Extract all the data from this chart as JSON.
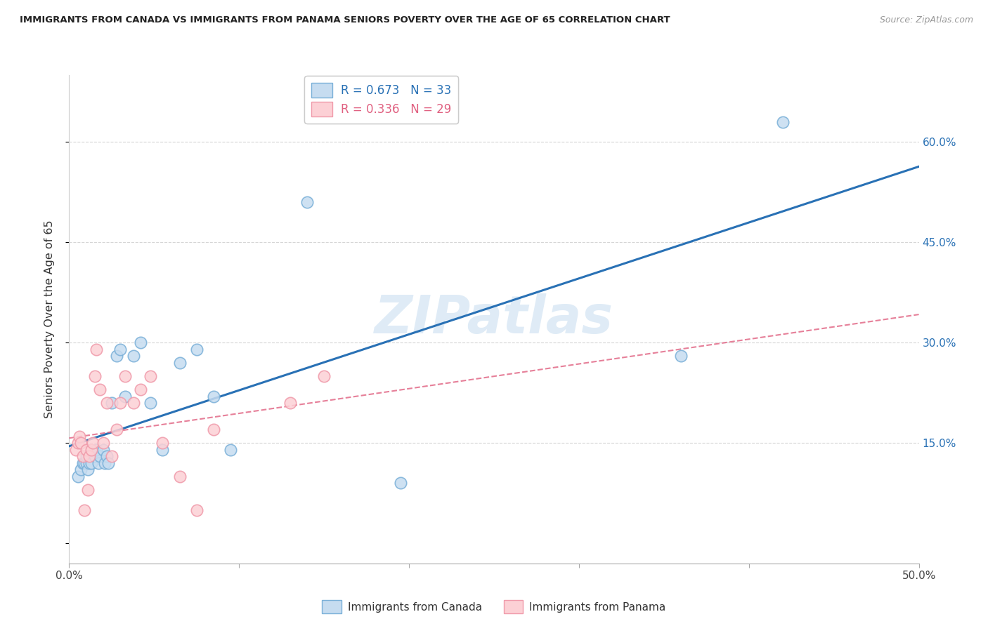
{
  "title": "IMMIGRANTS FROM CANADA VS IMMIGRANTS FROM PANAMA SENIORS POVERTY OVER THE AGE OF 65 CORRELATION CHART",
  "source": "Source: ZipAtlas.com",
  "ylabel": "Seniors Poverty Over the Age of 65",
  "watermark": "ZIPatlas",
  "xlim": [
    0.0,
    0.5
  ],
  "ylim": [
    -0.03,
    0.7
  ],
  "yticks": [
    0.0,
    0.15,
    0.3,
    0.45,
    0.6
  ],
  "ytick_labels": [
    "",
    "15.0%",
    "30.0%",
    "45.0%",
    "60.0%"
  ],
  "xticks": [
    0.0,
    0.1,
    0.2,
    0.3,
    0.4,
    0.5
  ],
  "xtick_labels": [
    "0.0%",
    "",
    "",
    "",
    "",
    "50.0%"
  ],
  "canada_R": 0.673,
  "canada_N": 33,
  "panama_R": 0.336,
  "panama_N": 29,
  "canada_scatter_face": "#c6dcf0",
  "canada_scatter_edge": "#7ab0d8",
  "panama_scatter_face": "#fcd0d5",
  "panama_scatter_edge": "#f09aaa",
  "canada_line_color": "#2971b5",
  "panama_line_color": "#e06080",
  "panama_dash_color": "#e06080",
  "background_color": "#ffffff",
  "grid_color": "#cccccc",
  "canada_x": [
    0.005,
    0.007,
    0.008,
    0.009,
    0.01,
    0.01,
    0.011,
    0.012,
    0.013,
    0.015,
    0.016,
    0.017,
    0.018,
    0.02,
    0.021,
    0.022,
    0.023,
    0.025,
    0.028,
    0.03,
    0.033,
    0.038,
    0.042,
    0.048,
    0.055,
    0.065,
    0.075,
    0.085,
    0.095,
    0.14,
    0.195,
    0.36,
    0.42
  ],
  "canada_y": [
    0.1,
    0.11,
    0.12,
    0.12,
    0.12,
    0.13,
    0.11,
    0.12,
    0.12,
    0.13,
    0.14,
    0.12,
    0.13,
    0.14,
    0.12,
    0.13,
    0.12,
    0.21,
    0.28,
    0.29,
    0.22,
    0.28,
    0.3,
    0.21,
    0.14,
    0.27,
    0.29,
    0.22,
    0.14,
    0.51,
    0.09,
    0.28,
    0.63
  ],
  "panama_x": [
    0.004,
    0.005,
    0.006,
    0.007,
    0.008,
    0.009,
    0.01,
    0.011,
    0.012,
    0.013,
    0.014,
    0.015,
    0.016,
    0.018,
    0.02,
    0.022,
    0.025,
    0.028,
    0.03,
    0.033,
    0.038,
    0.042,
    0.048,
    0.055,
    0.065,
    0.075,
    0.085,
    0.13,
    0.15
  ],
  "panama_y": [
    0.14,
    0.15,
    0.16,
    0.15,
    0.13,
    0.05,
    0.14,
    0.08,
    0.13,
    0.14,
    0.15,
    0.25,
    0.29,
    0.23,
    0.15,
    0.21,
    0.13,
    0.17,
    0.21,
    0.25,
    0.21,
    0.23,
    0.25,
    0.15,
    0.1,
    0.05,
    0.17,
    0.21,
    0.25
  ]
}
